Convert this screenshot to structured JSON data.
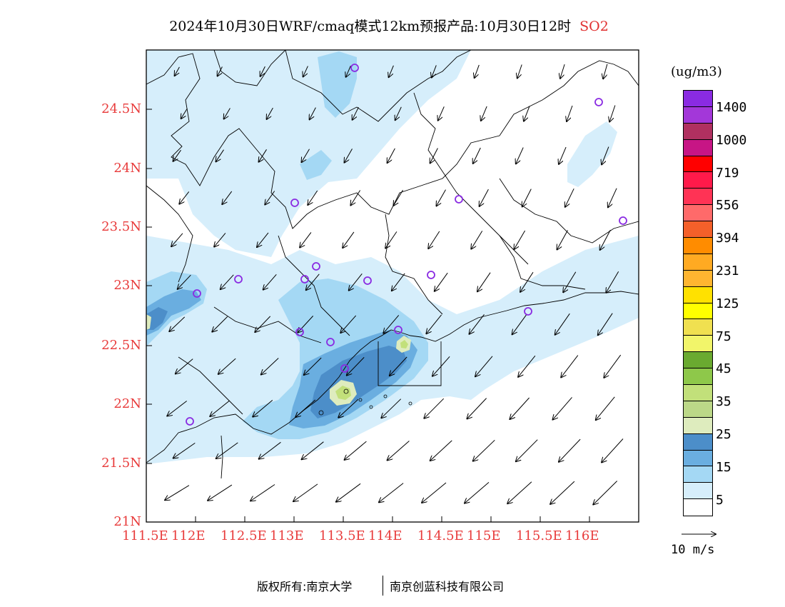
{
  "title": {
    "main": "2024年10月30日WRF/cmaq模式12km预报产品:10月30日12时",
    "species": "SO2"
  },
  "axes": {
    "lat_ticks": [
      "24.5N",
      "24N",
      "23.5N",
      "23N",
      "22.5N",
      "22N",
      "21.5N",
      "21N"
    ],
    "lon_ticks": [
      "111.5E",
      "112E",
      "112.5E",
      "113E",
      "113.5E",
      "114E",
      "114.5E",
      "115E",
      "115.5E",
      "116E"
    ]
  },
  "legend": {
    "unit": "(ug/m3)",
    "ticks": [
      "1400",
      "1000",
      "719",
      "556",
      "394",
      "231",
      "125",
      "75",
      "45",
      "35",
      "25",
      "15",
      "5"
    ],
    "colors": [
      "#8a2be2",
      "#a337d9",
      "#b03060",
      "#c71585",
      "#ff0000",
      "#ff1a4a",
      "#ff3355",
      "#ff6a6a",
      "#f4602a",
      "#ff8c00",
      "#ffaa22",
      "#ffb530",
      "#ffe100",
      "#ffff00",
      "#f0e050",
      "#f2f56a",
      "#6aaa30",
      "#8ec84a",
      "#c2e07a",
      "#bcd888",
      "#deecbe",
      "#4c8ec9",
      "#6aaee0",
      "#a4d8f4",
      "#d6eefb",
      "#ffffff"
    ],
    "wind_reference": "10 m/s"
  },
  "footer": {
    "left": "版权所有:南京大学",
    "right": "南京创蓝科技有限公司"
  }
}
